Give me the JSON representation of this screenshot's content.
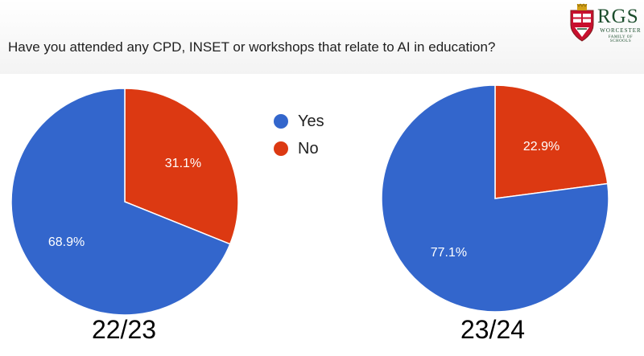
{
  "question": "Have you attended any CPD, INSET or workshops that relate to AI in education?",
  "logo": {
    "name": "RGS",
    "subtitle": "WORCESTER",
    "tagline": "FAMILY OF SCHOOLS"
  },
  "colors": {
    "yes": "#3366cc",
    "no": "#dc3912"
  },
  "legend": [
    {
      "label": "Yes",
      "color": "#3366cc"
    },
    {
      "label": "No",
      "color": "#dc3912"
    }
  ],
  "chart_data": [
    {
      "type": "pie",
      "title": "22/23",
      "slices": [
        {
          "label": "Yes",
          "value": 68.9,
          "display": "68.9%"
        },
        {
          "label": "No",
          "value": 31.1,
          "display": "31.1%"
        }
      ]
    },
    {
      "type": "pie",
      "title": "23/24",
      "slices": [
        {
          "label": "Yes",
          "value": 77.1,
          "display": "77.1%"
        },
        {
          "label": "No",
          "value": 22.9,
          "display": "22.9%"
        }
      ]
    }
  ]
}
